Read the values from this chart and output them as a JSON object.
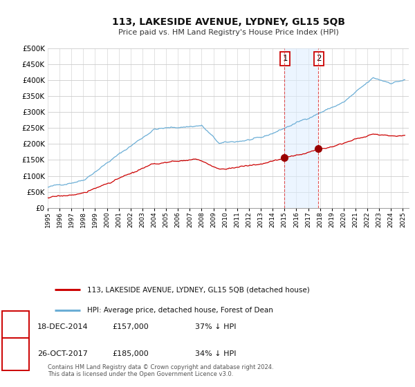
{
  "title": "113, LAKESIDE AVENUE, LYDNEY, GL15 5QB",
  "subtitle": "Price paid vs. HM Land Registry's House Price Index (HPI)",
  "legend_line1": "113, LAKESIDE AVENUE, LYDNEY, GL15 5QB (detached house)",
  "legend_line2": "HPI: Average price, detached house, Forest of Dean",
  "sale1_date": "18-DEC-2014",
  "sale1_price": "£157,000",
  "sale1_pct": "37% ↓ HPI",
  "sale2_date": "26-OCT-2017",
  "sale2_price": "£185,000",
  "sale2_pct": "34% ↓ HPI",
  "footnote": "Contains HM Land Registry data © Crown copyright and database right 2024.\nThis data is licensed under the Open Government Licence v3.0.",
  "hpi_color": "#6baed6",
  "price_color": "#cc0000",
  "shade_color": "#ddeeff",
  "ylim_max": 500000,
  "sale1_year": 2014.96,
  "sale2_year": 2017.82,
  "sale1_price_val": 157000,
  "sale2_price_val": 185000,
  "xmin": 1995,
  "xmax": 2025.5
}
